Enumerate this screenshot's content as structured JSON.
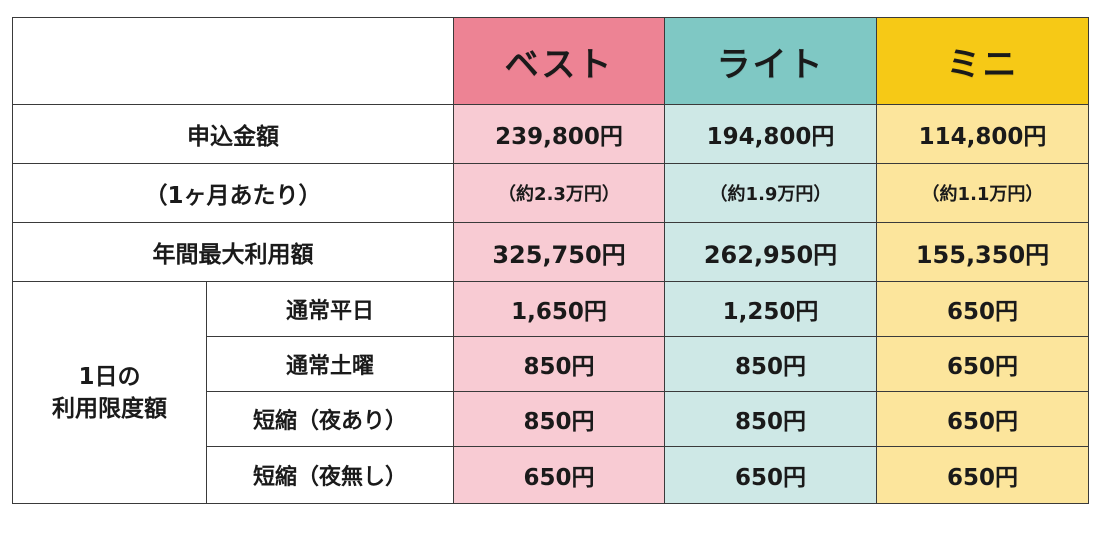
{
  "plans": [
    "ベスト",
    "ライト",
    "ミニ"
  ],
  "rows": {
    "application_fee": {
      "label": "申込金額",
      "values": [
        "239,800円",
        "194,800円",
        "114,800円"
      ]
    },
    "per_month": {
      "label": "（1ヶ月あたり）",
      "values": [
        "（約2.3万円）",
        "（約1.9万円）",
        "（約1.1万円）"
      ]
    },
    "annual_max": {
      "label": "年間最大利用額",
      "values": [
        "325,750円",
        "262,950円",
        "155,350円"
      ]
    }
  },
  "daily_limit": {
    "label_line1": "1日の",
    "label_line2": "利用限度額",
    "subrows": [
      {
        "label": "通常平日",
        "values": [
          "1,650円",
          "1,250円",
          "650円"
        ]
      },
      {
        "label": "通常土曜",
        "values": [
          "850円",
          "850円",
          "650円"
        ]
      },
      {
        "label": "短縮（夜あり）",
        "values": [
          "850円",
          "850円",
          "650円"
        ]
      },
      {
        "label": "短縮（夜無し）",
        "values": [
          "650円",
          "650円",
          "650円"
        ]
      }
    ]
  },
  "colors": {
    "best_header": "#ed8394",
    "lite_header": "#7fc8c4",
    "mini_header": "#f6c916",
    "best_cell": "#f8cbd3",
    "lite_cell": "#cee8e6",
    "mini_cell": "#fce59c",
    "value_red": "#e8445a",
    "value_blue": "#2a7ec0"
  }
}
